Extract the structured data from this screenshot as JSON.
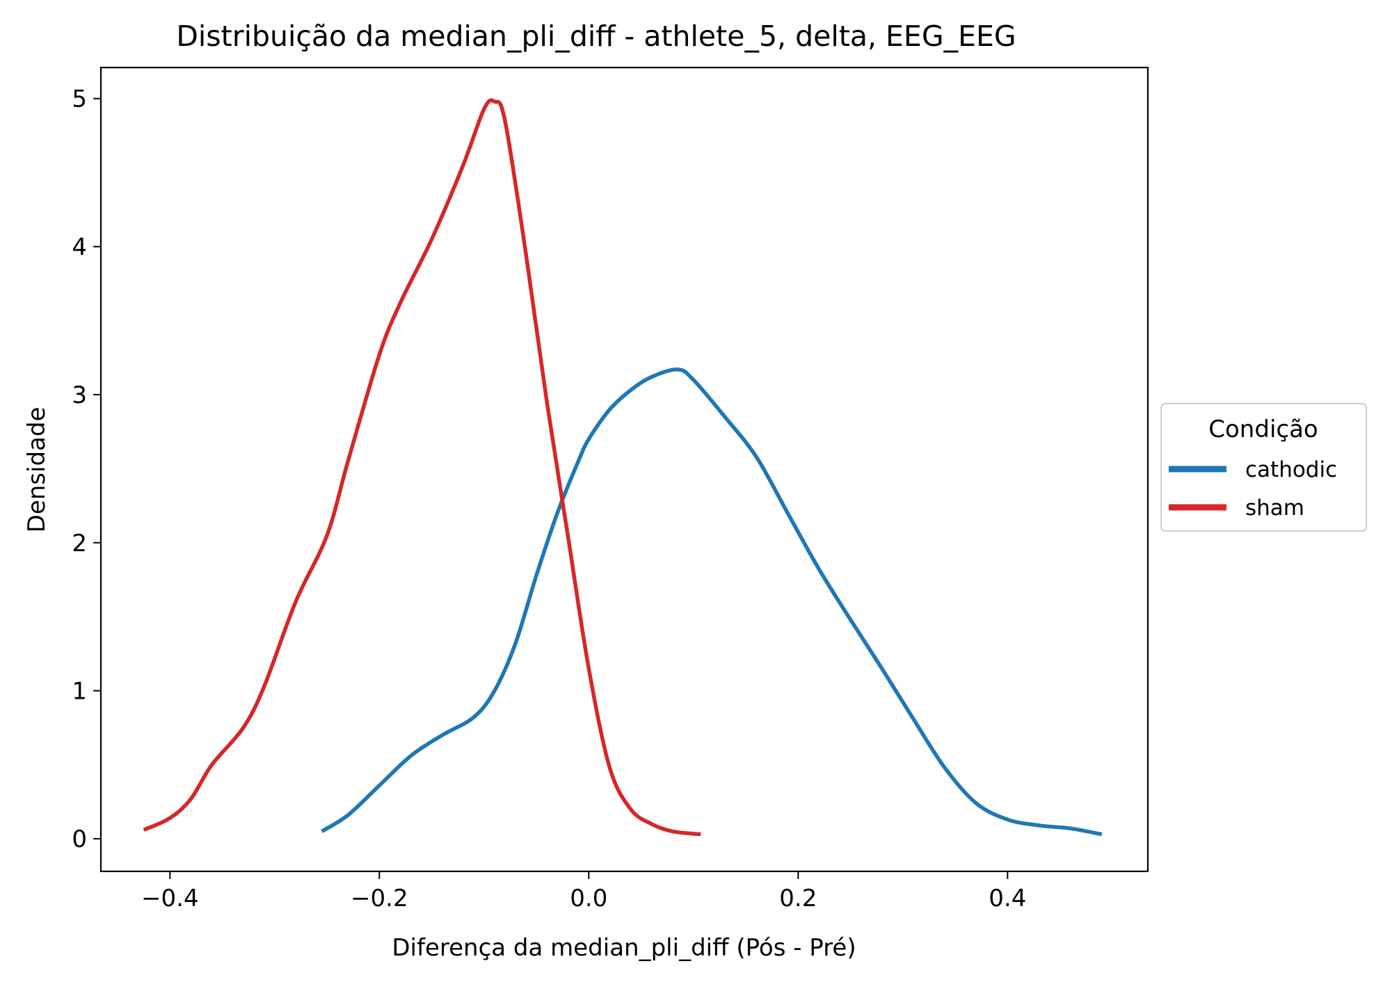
{
  "chart_data": {
    "type": "line",
    "title": "Distribuição da median_pli_diff - athlete_5, delta, EEG_EEG",
    "xlabel": "Diferença da median_pli_diff (Pós - Pré)",
    "ylabel": "Densidade",
    "xlim": [
      -0.466,
      0.534
    ],
    "ylim": [
      -0.22,
      5.21
    ],
    "xticks": [
      -0.4,
      -0.2,
      0.0,
      0.2,
      0.4
    ],
    "xtick_labels": [
      "−0.4",
      "−0.2",
      "0.0",
      "0.2",
      "0.4"
    ],
    "yticks": [
      0,
      1,
      2,
      3,
      4,
      5
    ],
    "ytick_labels": [
      "0",
      "1",
      "2",
      "3",
      "4",
      "5"
    ],
    "grid": false,
    "legend": {
      "title": "Condição",
      "placement": "center-right-outside"
    },
    "series": [
      {
        "name": "cathodic",
        "color": "#1f77b4",
        "x": [
          -0.255,
          -0.23,
          -0.2,
          -0.17,
          -0.14,
          -0.11,
          -0.09,
          -0.07,
          -0.05,
          -0.03,
          -0.01,
          0.0,
          0.02,
          0.04,
          0.06,
          0.085,
          0.1,
          0.13,
          0.16,
          0.19,
          0.22,
          0.25,
          0.28,
          0.31,
          0.34,
          0.37,
          0.4,
          0.43,
          0.46,
          0.49
        ],
        "y": [
          0.05,
          0.16,
          0.36,
          0.56,
          0.7,
          0.82,
          1.0,
          1.32,
          1.78,
          2.2,
          2.55,
          2.7,
          2.9,
          3.03,
          3.12,
          3.17,
          3.1,
          2.85,
          2.58,
          2.2,
          1.82,
          1.48,
          1.15,
          0.81,
          0.48,
          0.24,
          0.13,
          0.09,
          0.07,
          0.03
        ]
      },
      {
        "name": "sham",
        "color": "#d62728",
        "x": [
          -0.425,
          -0.4,
          -0.38,
          -0.36,
          -0.33,
          -0.31,
          -0.28,
          -0.25,
          -0.23,
          -0.2,
          -0.18,
          -0.15,
          -0.12,
          -0.1,
          -0.09,
          -0.08,
          -0.06,
          -0.04,
          -0.02,
          0.0,
          0.02,
          0.04,
          0.06,
          0.08,
          0.107
        ],
        "y": [
          0.06,
          0.14,
          0.27,
          0.5,
          0.75,
          1.03,
          1.6,
          2.05,
          2.55,
          3.27,
          3.62,
          4.05,
          4.55,
          4.93,
          4.98,
          4.85,
          3.95,
          2.95,
          2.05,
          1.15,
          0.48,
          0.2,
          0.1,
          0.05,
          0.03
        ]
      }
    ]
  }
}
